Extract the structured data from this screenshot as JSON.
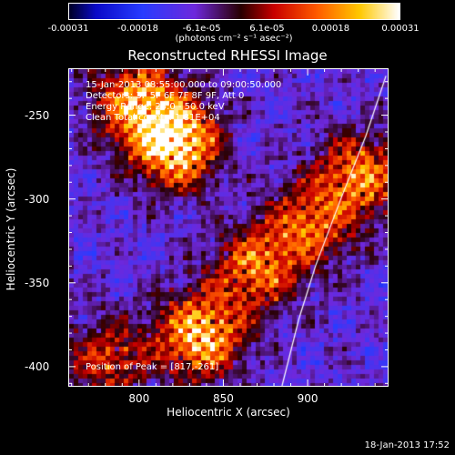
{
  "colorbar": {
    "min": -0.00031,
    "max": 0.00031,
    "ticks": [
      {
        "label": "-0.00031",
        "value": -0.00031
      },
      {
        "label": "-0.00018",
        "value": -0.00018
      },
      {
        "label": "-6.1e-05",
        "value": -6.1e-05
      },
      {
        "label": "6.1e-05",
        "value": 6.1e-05
      },
      {
        "label": "0.00018",
        "value": 0.00018
      },
      {
        "label": "0.00031",
        "value": 0.00031
      }
    ],
    "units_label": "(photons cm⁻² s⁻¹ asec⁻²)"
  },
  "chart_data": {
    "type": "heatmap",
    "title": "Reconstructed RHESSI Image",
    "xlabel": "Heliocentric X (arcsec)",
    "ylabel": "Heliocentric Y (arcsec)",
    "xlim": [
      758,
      948
    ],
    "ylim": [
      -412,
      -222
    ],
    "xticks": [
      800,
      850,
      900
    ],
    "yticks": [
      -250,
      -300,
      -350,
      -400
    ],
    "annotations": [
      "15-Jan-2013 08:55:00.000 to 09:00:50.000",
      "Detectors: 3F 5F 6F 7F 8F 9F, Att 0",
      "Energy Range: 25.0 - 50.0 keV",
      "Clean    Total counts: 1.81E+04"
    ],
    "peak_label": "Position of Peak = [817,-261]",
    "peak": [
      817,
      -261
    ],
    "bright_sources": [
      {
        "x": 820,
        "y": -265,
        "strength": 1.0
      },
      {
        "x": 797,
        "y": -240,
        "strength": 0.7
      },
      {
        "x": 835,
        "y": -380,
        "strength": 0.85
      },
      {
        "x": 868,
        "y": -340,
        "strength": 0.6
      },
      {
        "x": 900,
        "y": -315,
        "strength": 0.55
      },
      {
        "x": 930,
        "y": -285,
        "strength": 0.65
      },
      {
        "x": 780,
        "y": -395,
        "strength": 0.45
      }
    ],
    "limb_curve": [
      [
        947,
        -226
      ],
      [
        935,
        -262
      ],
      [
        920,
        -300
      ],
      [
        905,
        -340
      ],
      [
        895,
        -372
      ],
      [
        885,
        -412
      ]
    ]
  },
  "timestamp": "18-Jan-2013 17:52"
}
